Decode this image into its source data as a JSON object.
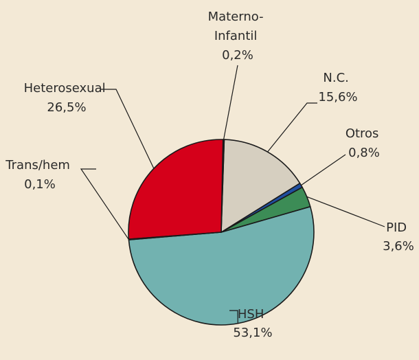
{
  "chart_data": {
    "type": "pie",
    "categories": [
      "HSH",
      "PID",
      "Otros",
      "N.C.",
      "Materno-Infantil",
      "Heterosexual",
      "Trans/hem"
    ],
    "values": [
      53.1,
      3.6,
      0.8,
      15.6,
      0.2,
      26.5,
      0.1
    ],
    "labels": [
      {
        "lines": [
          "HSH",
          "53,1%"
        ]
      },
      {
        "lines": [
          "PID",
          "3,6%"
        ]
      },
      {
        "lines": [
          "Otros",
          "0,8%"
        ]
      },
      {
        "lines": [
          "N.C.",
          "15,6%"
        ]
      },
      {
        "lines": [
          "Materno-",
          "Infantil",
          "0,2%"
        ]
      },
      {
        "lines": [
          "Heterosexual",
          "26,5%"
        ]
      },
      {
        "lines": [
          "Trans/hem",
          "0,1%"
        ]
      }
    ],
    "colors": [
      "#72b2b0",
      "#3c8c56",
      "#1f4ea0",
      "#d6cfc0",
      "#222222",
      "#d5001a",
      "#222222"
    ],
    "slice_stroke": "#1a1a1a"
  }
}
